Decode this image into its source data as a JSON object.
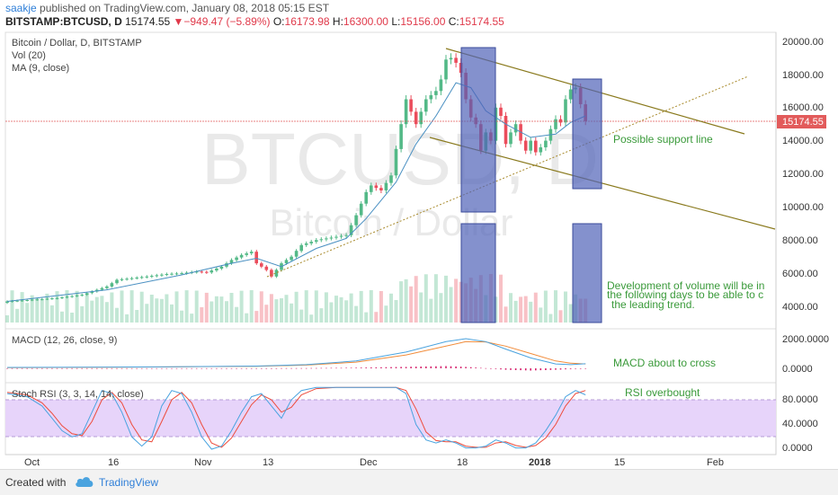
{
  "header": {
    "author": "saakje",
    "published": "published on TradingView.com, January 08, 2018 05:15 EST",
    "symbol": "BITSTAMP:BTCUSD, D",
    "price": "15174.55",
    "change_arrow": "▼",
    "change": "−949.47 (−5.89%)",
    "open_label": "O:",
    "open": "16173.98",
    "high_label": "H:",
    "high": "16300.00",
    "low_label": "L:",
    "low": "15156.00",
    "close_label": "C:",
    "close": "15174.55"
  },
  "legend": {
    "title": "Bitcoin / Dollar, D, BITSTAMP",
    "vol": "Vol (20)",
    "ma": "MA (9, close)",
    "macd": "MACD (12, 26, close, 9)",
    "stoch": "Stoch RSI (3, 3, 14, 14, close)"
  },
  "watermark": {
    "symbol": "BTCUSD, D",
    "name": "Bitcoin / Dollar"
  },
  "price_axis": [
    "20000.00",
    "18000.00",
    "16000.00",
    "14000.00",
    "12000.00",
    "10000.00",
    "8000.00",
    "6000.00",
    "4000.00"
  ],
  "last_price_tag": "15174.55",
  "macd_axis": [
    "2000.0000",
    "0.0000"
  ],
  "stoch_axis": [
    "80.0000",
    "40.0000",
    "0.0000"
  ],
  "x_axis": [
    "Oct",
    "16",
    "Nov",
    "13",
    "Dec",
    "18",
    "2018",
    "15",
    "Feb"
  ],
  "annotations": {
    "support": "Possible support line",
    "volume": [
      "Development of volume will be in",
      "the following days to be able to c",
      "the leading trend."
    ],
    "macd": "MACD about to cross",
    "rsi": "RSI overbought"
  },
  "footer": {
    "created": "Created with",
    "brand": "TradingView"
  },
  "colors": {
    "up": "#53b987",
    "down": "#eb4d5c",
    "ma": "#4a90c2",
    "macd": "#4aa3df",
    "signal": "#f28c3a",
    "hist": "#d6246e",
    "stoch_k": "#4aa3df",
    "stoch_d": "#ee4c3c",
    "channel": "#8a7a1e",
    "support": "#6aa53a",
    "box": "#5063b8",
    "band": "#d6b3f5",
    "price_line": "#e25b5b"
  },
  "chart_data": {
    "type": "candlestick",
    "title": "Bitcoin / Dollar, D, BITSTAMP",
    "x_ticks": [
      "Oct",
      "16",
      "Nov",
      "13",
      "Dec",
      "18",
      "2018",
      "15",
      "Feb"
    ],
    "price_range": [
      3000,
      20500
    ],
    "close_path": [
      [
        0,
        4300
      ],
      [
        5,
        4400
      ],
      [
        10,
        4500
      ],
      [
        15,
        4700
      ],
      [
        20,
        5200
      ],
      [
        22,
        5600
      ],
      [
        25,
        5700
      ],
      [
        28,
        5800
      ],
      [
        32,
        5950
      ],
      [
        35,
        6000
      ],
      [
        38,
        6100
      ],
      [
        40,
        6050
      ],
      [
        43,
        6400
      ],
      [
        45,
        6800
      ],
      [
        47,
        7100
      ],
      [
        49,
        7300
      ],
      [
        50,
        6600
      ],
      [
        52,
        6200
      ],
      [
        53,
        5800
      ],
      [
        55,
        6600
      ],
      [
        57,
        7000
      ],
      [
        59,
        7700
      ],
      [
        62,
        8000
      ],
      [
        64,
        8100
      ],
      [
        66,
        8200
      ],
      [
        68,
        8300
      ],
      [
        70,
        9500
      ],
      [
        72,
        10900
      ],
      [
        73,
        11300
      ],
      [
        75,
        11000
      ],
      [
        77,
        11900
      ],
      [
        78,
        13500
      ],
      [
        79,
        15000
      ],
      [
        80,
        16500
      ],
      [
        82,
        15000
      ],
      [
        84,
        16500
      ],
      [
        86,
        17000
      ],
      [
        87,
        17700
      ],
      [
        88,
        18900
      ],
      [
        89,
        19000
      ],
      [
        90,
        18700
      ],
      [
        91,
        18100
      ],
      [
        92,
        16500
      ],
      [
        93,
        15400
      ],
      [
        94,
        15000
      ],
      [
        95,
        13400
      ],
      [
        96,
        14500
      ],
      [
        97,
        14000
      ],
      [
        98,
        16000
      ],
      [
        99,
        15500
      ],
      [
        100,
        13800
      ],
      [
        101,
        14500
      ],
      [
        102,
        15000
      ],
      [
        103,
        14000
      ],
      [
        104,
        13400
      ],
      [
        105,
        14000
      ],
      [
        106,
        13300
      ],
      [
        107,
        13600
      ],
      [
        108,
        14000
      ],
      [
        109,
        14700
      ],
      [
        110,
        15300
      ],
      [
        111,
        15100
      ],
      [
        112,
        16500
      ],
      [
        113,
        17100
      ],
      [
        114,
        17200
      ],
      [
        115,
        16200
      ],
      [
        116,
        15175
      ]
    ],
    "ma9_path": [
      [
        0,
        4300
      ],
      [
        20,
        5000
      ],
      [
        35,
        5900
      ],
      [
        45,
        6600
      ],
      [
        50,
        6900
      ],
      [
        55,
        6400
      ],
      [
        62,
        7500
      ],
      [
        68,
        8100
      ],
      [
        72,
        9300
      ],
      [
        78,
        11500
      ],
      [
        82,
        13800
      ],
      [
        86,
        15500
      ],
      [
        90,
        17500
      ],
      [
        93,
        17200
      ],
      [
        96,
        15800
      ],
      [
        100,
        15000
      ],
      [
        105,
        14200
      ],
      [
        110,
        14400
      ],
      [
        113,
        15100
      ],
      [
        116,
        15500
      ]
    ],
    "volume": "relative daily volume bars beneath price",
    "macd": {
      "range": [
        -500,
        2200
      ],
      "macd_line": [
        [
          0,
          60
        ],
        [
          30,
          100
        ],
        [
          50,
          150
        ],
        [
          60,
          250
        ],
        [
          70,
          500
        ],
        [
          80,
          1100
        ],
        [
          88,
          1800
        ],
        [
          92,
          2000
        ],
        [
          96,
          1800
        ],
        [
          100,
          1300
        ],
        [
          105,
          700
        ],
        [
          110,
          300
        ],
        [
          113,
          250
        ],
        [
          116,
          310
        ]
      ],
      "signal_line": [
        [
          0,
          50
        ],
        [
          30,
          90
        ],
        [
          50,
          140
        ],
        [
          60,
          220
        ],
        [
          70,
          420
        ],
        [
          80,
          900
        ],
        [
          88,
          1500
        ],
        [
          92,
          1800
        ],
        [
          96,
          1780
        ],
        [
          100,
          1500
        ],
        [
          105,
          1000
        ],
        [
          110,
          500
        ],
        [
          113,
          350
        ],
        [
          116,
          300
        ]
      ]
    },
    "stoch_rsi": {
      "range": [
        -5,
        105
      ],
      "k_line": [
        [
          0,
          90
        ],
        [
          4,
          85
        ],
        [
          7,
          70
        ],
        [
          9,
          50
        ],
        [
          11,
          30
        ],
        [
          13,
          20
        ],
        [
          15,
          25
        ],
        [
          17,
          60
        ],
        [
          19,
          95
        ],
        [
          21,
          90
        ],
        [
          23,
          60
        ],
        [
          25,
          20
        ],
        [
          27,
          5
        ],
        [
          29,
          20
        ],
        [
          31,
          70
        ],
        [
          33,
          95
        ],
        [
          35,
          90
        ],
        [
          37,
          60
        ],
        [
          39,
          20
        ],
        [
          41,
          0
        ],
        [
          43,
          5
        ],
        [
          45,
          30
        ],
        [
          47,
          60
        ],
        [
          49,
          85
        ],
        [
          51,
          90
        ],
        [
          53,
          70
        ],
        [
          55,
          50
        ],
        [
          57,
          80
        ],
        [
          59,
          95
        ],
        [
          62,
          100
        ],
        [
          66,
          100
        ],
        [
          70,
          100
        ],
        [
          74,
          100
        ],
        [
          78,
          100
        ],
        [
          80,
          90
        ],
        [
          82,
          40
        ],
        [
          84,
          15
        ],
        [
          86,
          10
        ],
        [
          88,
          15
        ],
        [
          90,
          10
        ],
        [
          92,
          2
        ],
        [
          94,
          2
        ],
        [
          96,
          5
        ],
        [
          98,
          15
        ],
        [
          100,
          10
        ],
        [
          102,
          2
        ],
        [
          104,
          2
        ],
        [
          106,
          10
        ],
        [
          108,
          30
        ],
        [
          110,
          55
        ],
        [
          112,
          85
        ],
        [
          114,
          95
        ],
        [
          116,
          88
        ]
      ],
      "d_line": [
        [
          0,
          92
        ],
        [
          4,
          88
        ],
        [
          7,
          75
        ],
        [
          9,
          58
        ],
        [
          11,
          38
        ],
        [
          13,
          25
        ],
        [
          15,
          22
        ],
        [
          17,
          45
        ],
        [
          19,
          80
        ],
        [
          21,
          92
        ],
        [
          23,
          75
        ],
        [
          25,
          40
        ],
        [
          27,
          15
        ],
        [
          29,
          12
        ],
        [
          31,
          45
        ],
        [
          33,
          80
        ],
        [
          35,
          92
        ],
        [
          37,
          75
        ],
        [
          39,
          40
        ],
        [
          41,
          10
        ],
        [
          43,
          3
        ],
        [
          45,
          18
        ],
        [
          47,
          45
        ],
        [
          49,
          72
        ],
        [
          51,
          88
        ],
        [
          53,
          80
        ],
        [
          55,
          60
        ],
        [
          57,
          68
        ],
        [
          59,
          88
        ],
        [
          62,
          98
        ],
        [
          66,
          100
        ],
        [
          70,
          100
        ],
        [
          74,
          100
        ],
        [
          78,
          100
        ],
        [
          80,
          95
        ],
        [
          82,
          65
        ],
        [
          84,
          28
        ],
        [
          86,
          14
        ],
        [
          88,
          12
        ],
        [
          90,
          12
        ],
        [
          92,
          5
        ],
        [
          94,
          3
        ],
        [
          96,
          3
        ],
        [
          98,
          10
        ],
        [
          100,
          12
        ],
        [
          102,
          6
        ],
        [
          104,
          3
        ],
        [
          106,
          6
        ],
        [
          108,
          18
        ],
        [
          110,
          40
        ],
        [
          112,
          70
        ],
        [
          114,
          90
        ],
        [
          116,
          95
        ]
      ]
    }
  }
}
